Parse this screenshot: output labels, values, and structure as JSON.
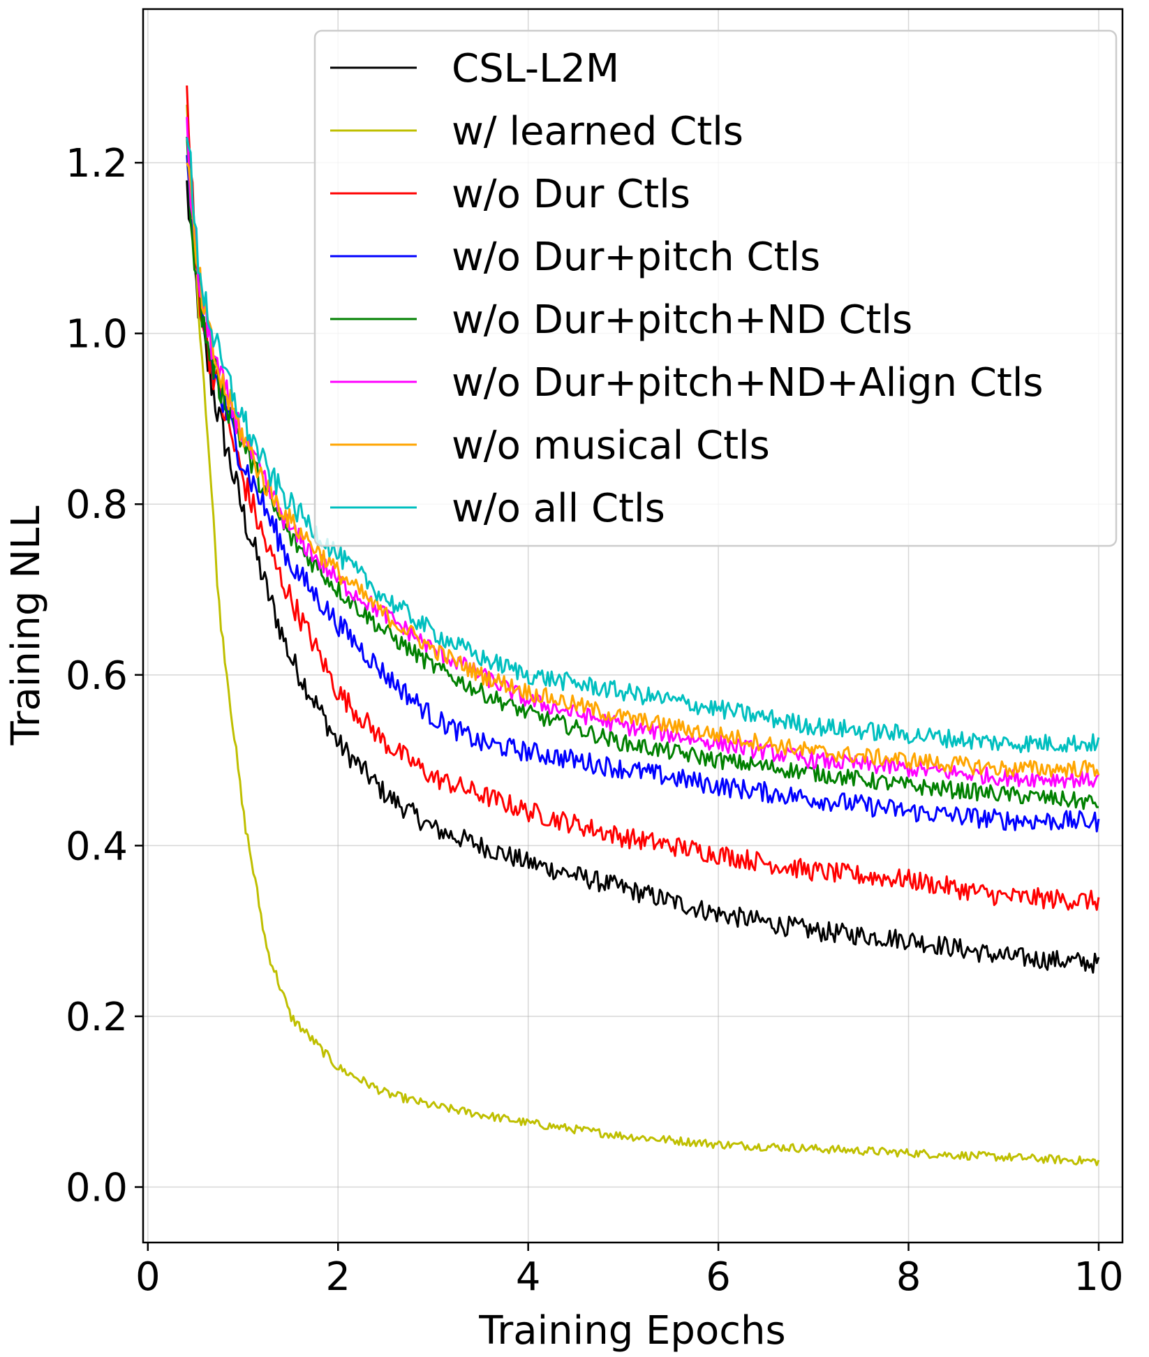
{
  "chart_data": {
    "type": "line",
    "title": "",
    "xlabel": "Training Epochs",
    "ylabel": "Training NLL",
    "xlim": [
      -0.05,
      10.25
    ],
    "ylim": [
      -0.065,
      1.38
    ],
    "xticks": [
      0,
      2,
      4,
      6,
      8,
      10
    ],
    "xtick_labels": [
      "0",
      "2",
      "4",
      "6",
      "8",
      "10"
    ],
    "yticks": [
      0.0,
      0.2,
      0.4,
      0.6,
      0.8,
      1.0,
      1.2
    ],
    "ytick_labels": [
      "0.0",
      "0.2",
      "0.4",
      "0.6",
      "0.8",
      "1.0",
      "1.2"
    ],
    "grid": true,
    "legend_position": "upper-right",
    "x": [
      0.41,
      0.5,
      0.6,
      0.75,
      1.0,
      1.25,
      1.5,
      2.0,
      2.5,
      3.0,
      3.5,
      4.0,
      5.0,
      6.0,
      7.0,
      8.0,
      9.0,
      10.0
    ],
    "series": [
      {
        "name": "CSL-L2M",
        "color": "#000000",
        "noise": 0.012,
        "values": [
          1.17,
          1.06,
          0.98,
          0.9,
          0.79,
          0.7,
          0.62,
          0.52,
          0.46,
          0.42,
          0.4,
          0.38,
          0.35,
          0.32,
          0.3,
          0.29,
          0.27,
          0.262
        ]
      },
      {
        "name": "w/ learned Ctls",
        "color": "#bfbf00",
        "noise": 0.005,
        "values": [
          1.26,
          1.08,
          0.93,
          0.68,
          0.44,
          0.28,
          0.2,
          0.14,
          0.11,
          0.095,
          0.085,
          0.075,
          0.06,
          0.05,
          0.045,
          0.04,
          0.035,
          0.03
        ]
      },
      {
        "name": "w/o Dur Ctls",
        "color": "#ff0000",
        "noise": 0.012,
        "values": [
          1.28,
          1.09,
          1.0,
          0.93,
          0.83,
          0.75,
          0.69,
          0.58,
          0.52,
          0.48,
          0.46,
          0.44,
          0.41,
          0.39,
          0.37,
          0.36,
          0.34,
          0.335
        ]
      },
      {
        "name": "w/o Dur+pitch Ctls",
        "color": "#0000ff",
        "noise": 0.012,
        "values": [
          1.2,
          1.07,
          1.0,
          0.93,
          0.85,
          0.79,
          0.73,
          0.66,
          0.6,
          0.55,
          0.52,
          0.51,
          0.49,
          0.47,
          0.455,
          0.44,
          0.43,
          0.428
        ]
      },
      {
        "name": "w/o Dur+pitch+ND Ctls",
        "color": "#008000",
        "noise": 0.01,
        "values": [
          1.21,
          1.08,
          1.0,
          0.94,
          0.87,
          0.81,
          0.76,
          0.7,
          0.65,
          0.61,
          0.58,
          0.555,
          0.52,
          0.5,
          0.485,
          0.47,
          0.46,
          0.45
        ]
      },
      {
        "name": "w/o Dur+pitch+ND+Align Ctls",
        "color": "#ff00ff",
        "noise": 0.01,
        "values": [
          1.23,
          1.09,
          1.02,
          0.95,
          0.88,
          0.82,
          0.77,
          0.71,
          0.67,
          0.63,
          0.6,
          0.57,
          0.54,
          0.52,
          0.5,
          0.49,
          0.48,
          0.477
        ]
      },
      {
        "name": "w/o musical Ctls",
        "color": "#ffa500",
        "noise": 0.01,
        "values": [
          1.22,
          1.09,
          1.02,
          0.95,
          0.88,
          0.82,
          0.78,
          0.72,
          0.67,
          0.63,
          0.6,
          0.58,
          0.55,
          0.53,
          0.51,
          0.5,
          0.49,
          0.49
        ]
      },
      {
        "name": "w/o all Ctls",
        "color": "#00bfbf",
        "noise": 0.011,
        "values": [
          1.25,
          1.11,
          1.04,
          0.97,
          0.9,
          0.84,
          0.8,
          0.74,
          0.69,
          0.65,
          0.62,
          0.6,
          0.58,
          0.56,
          0.54,
          0.53,
          0.52,
          0.52
        ]
      }
    ]
  }
}
